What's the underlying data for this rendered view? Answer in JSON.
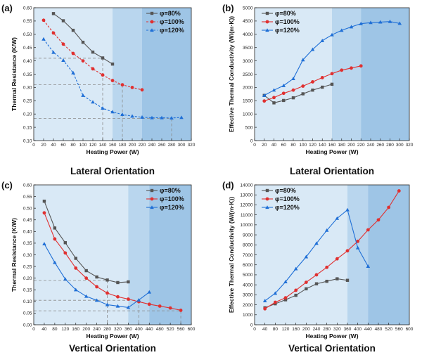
{
  "chart_data": [
    {
      "type": "line",
      "panel_label": "(a)",
      "caption": "Lateral Orientation",
      "xlabel": "Heating Power (W)",
      "ylabel": "Thermal Resistance (K/W)",
      "xlim": [
        0,
        320
      ],
      "ylim": [
        0.1,
        0.6
      ],
      "xticks": [
        "0",
        "20",
        "40",
        "60",
        "80",
        "100",
        "120",
        "140",
        "160",
        "180",
        "200",
        "220",
        "240",
        "260",
        "280",
        "300",
        "320"
      ],
      "yticks": [
        "0.10",
        "0.15",
        "0.20",
        "0.25",
        "0.30",
        "0.35",
        "0.40",
        "0.45",
        "0.50",
        "0.55",
        "0.60"
      ],
      "legend_position": "top-right",
      "shaded_regions": [
        [
          160,
          220
        ],
        [
          220,
          320
        ]
      ],
      "reference_lines": [
        {
          "x": 140,
          "y": 0.41
        },
        {
          "x": 180,
          "y": 0.31
        },
        {
          "x": 280,
          "y": 0.183
        }
      ],
      "series": [
        {
          "name": "φ=80%",
          "color": "#555555",
          "marker": "square",
          "x": [
            40,
            60,
            80,
            100,
            120,
            140,
            160
          ],
          "y": [
            0.578,
            0.551,
            0.515,
            0.47,
            0.433,
            0.411,
            0.388
          ]
        },
        {
          "name": "φ=100%",
          "color": "#e03030",
          "marker": "circle",
          "dashed": true,
          "x": [
            20,
            40,
            60,
            80,
            100,
            120,
            140,
            160,
            180,
            200,
            220
          ],
          "y": [
            0.553,
            0.505,
            0.463,
            0.428,
            0.4,
            0.37,
            0.347,
            0.326,
            0.31,
            0.3,
            0.291
          ]
        },
        {
          "name": "φ=120%",
          "color": "#1f6fd6",
          "marker": "triangle",
          "dashed": true,
          "x": [
            20,
            40,
            60,
            80,
            100,
            120,
            140,
            160,
            180,
            200,
            220,
            240,
            260,
            280,
            300
          ],
          "y": [
            0.482,
            0.432,
            0.402,
            0.355,
            0.27,
            0.245,
            0.222,
            0.208,
            0.198,
            0.192,
            0.188,
            0.186,
            0.186,
            0.185,
            0.187
          ]
        }
      ]
    },
    {
      "type": "line",
      "panel_label": "(b)",
      "caption": "Lateral Orientation",
      "xlabel": "Heating Power (W)",
      "ylabel": "Effective Thermal Conductivity (W/(m·K))",
      "xlim": [
        0,
        320
      ],
      "ylim": [
        0,
        5000
      ],
      "xticks": [
        "0",
        "20",
        "40",
        "60",
        "80",
        "100",
        "120",
        "140",
        "160",
        "180",
        "200",
        "220",
        "240",
        "260",
        "280",
        "300",
        "320"
      ],
      "yticks": [
        "0",
        "500",
        "1000",
        "1500",
        "2000",
        "2500",
        "3000",
        "3500",
        "4000",
        "4500",
        "5000"
      ],
      "legend_position": "top-left",
      "shaded_regions": [
        [
          160,
          220
        ],
        [
          220,
          320
        ]
      ],
      "series": [
        {
          "name": "φ=80%",
          "color": "#555555",
          "marker": "square",
          "x": [
            20,
            40,
            60,
            80,
            100,
            120,
            140,
            160
          ],
          "y": [
            1700,
            1420,
            1510,
            1610,
            1760,
            1900,
            2010,
            2120
          ]
        },
        {
          "name": "φ=100%",
          "color": "#e03030",
          "marker": "circle",
          "x": [
            20,
            40,
            60,
            80,
            100,
            120,
            140,
            160,
            180,
            200,
            220
          ],
          "y": [
            1490,
            1620,
            1780,
            1900,
            2050,
            2210,
            2370,
            2520,
            2650,
            2730,
            2810
          ]
        },
        {
          "name": "φ=120%",
          "color": "#1f6fd6",
          "marker": "triangle",
          "x": [
            20,
            40,
            60,
            80,
            100,
            120,
            140,
            160,
            180,
            200,
            220,
            240,
            260,
            280,
            300
          ],
          "y": [
            1700,
            1900,
            2070,
            2330,
            3040,
            3430,
            3760,
            3980,
            4150,
            4280,
            4400,
            4440,
            4460,
            4480,
            4410
          ]
        }
      ]
    },
    {
      "type": "line",
      "panel_label": "(c)",
      "caption": "Vertical Orientation",
      "xlabel": "Heating Power (W)",
      "ylabel": "Thermal Resistance (K/W)",
      "xlim": [
        0,
        600
      ],
      "ylim": [
        0.0,
        0.6
      ],
      "xticks": [
        "0",
        "40",
        "80",
        "120",
        "160",
        "200",
        "240",
        "280",
        "320",
        "360",
        "400",
        "440",
        "480",
        "520",
        "560",
        "600"
      ],
      "yticks": [
        "0.00",
        "0.05",
        "0.10",
        "0.15",
        "0.20",
        "0.25",
        "0.30",
        "0.35",
        "0.40",
        "0.45",
        "0.50",
        "0.55",
        "0.60"
      ],
      "legend_position": "top-right",
      "shaded_regions": [
        [
          360,
          440
        ],
        [
          440,
          600
        ]
      ],
      "reference_lines": [
        {
          "x": 280,
          "y": 0.19
        },
        {
          "x": 400,
          "y": 0.105
        },
        {
          "x": 560,
          "y": 0.06
        }
      ],
      "series": [
        {
          "name": "φ=80%",
          "color": "#555555",
          "marker": "square",
          "x": [
            40,
            80,
            120,
            160,
            200,
            240,
            280,
            320,
            360
          ],
          "y": [
            0.53,
            0.415,
            0.352,
            0.285,
            0.232,
            0.205,
            0.192,
            0.181,
            0.184
          ]
        },
        {
          "name": "φ=100%",
          "color": "#e03030",
          "marker": "circle",
          "x": [
            40,
            80,
            120,
            160,
            200,
            240,
            280,
            320,
            360,
            400,
            440,
            480,
            520,
            560
          ],
          "y": [
            0.48,
            0.368,
            0.308,
            0.243,
            0.2,
            0.163,
            0.136,
            0.12,
            0.11,
            0.099,
            0.088,
            0.08,
            0.072,
            0.062
          ]
        },
        {
          "name": "φ=120%",
          "color": "#1f6fd6",
          "marker": "triangle",
          "x": [
            40,
            80,
            120,
            160,
            200,
            240,
            280,
            320,
            360,
            400,
            440
          ],
          "y": [
            0.347,
            0.267,
            0.196,
            0.15,
            0.122,
            0.105,
            0.086,
            0.08,
            0.074,
            0.106,
            0.14
          ]
        }
      ]
    },
    {
      "type": "line",
      "panel_label": "(d)",
      "caption": "Vertical Orientation",
      "xlabel": "Heating Power (W)",
      "ylabel": "Effective Thermal Conductivity (W/(m·K))",
      "xlim": [
        0,
        600
      ],
      "ylim": [
        0,
        14000
      ],
      "xticks": [
        "0",
        "40",
        "80",
        "120",
        "160",
        "200",
        "240",
        "280",
        "320",
        "360",
        "400",
        "440",
        "480",
        "520",
        "560",
        "600"
      ],
      "yticks": [
        "0",
        "1000",
        "2000",
        "3000",
        "4000",
        "5000",
        "6000",
        "7000",
        "8000",
        "9000",
        "10000",
        "11000",
        "12000",
        "13000",
        "14000"
      ],
      "legend_position": "top-left",
      "shaded_regions": [
        [
          360,
          440
        ],
        [
          440,
          600
        ]
      ],
      "series": [
        {
          "name": "φ=80%",
          "color": "#555555",
          "marker": "square",
          "x": [
            40,
            80,
            120,
            160,
            200,
            240,
            280,
            320,
            360
          ],
          "y": [
            1700,
            2100,
            2500,
            2950,
            3600,
            4100,
            4350,
            4600,
            4450
          ]
        },
        {
          "name": "φ=100%",
          "color": "#e03030",
          "marker": "circle",
          "x": [
            40,
            80,
            120,
            160,
            200,
            240,
            280,
            320,
            360,
            400,
            440,
            480,
            520,
            560
          ],
          "y": [
            1600,
            2250,
            2700,
            3450,
            4250,
            5000,
            5750,
            6600,
            7400,
            8350,
            9500,
            10500,
            11750,
            13400
          ]
        },
        {
          "name": "φ=120%",
          "color": "#1f6fd6",
          "marker": "triangle",
          "x": [
            40,
            80,
            120,
            160,
            200,
            240,
            280,
            320,
            360,
            400,
            440
          ],
          "y": [
            2400,
            3150,
            4300,
            5600,
            6800,
            8150,
            9450,
            10650,
            11500,
            7700,
            5850
          ]
        }
      ]
    }
  ],
  "colors": {
    "shade_light": "#d9e9f6",
    "shade_mid": "#b9d6ee",
    "shade_dark": "#9ec5e6",
    "series_80": "#555555",
    "series_100": "#e03030",
    "series_120": "#1f6fd6"
  }
}
